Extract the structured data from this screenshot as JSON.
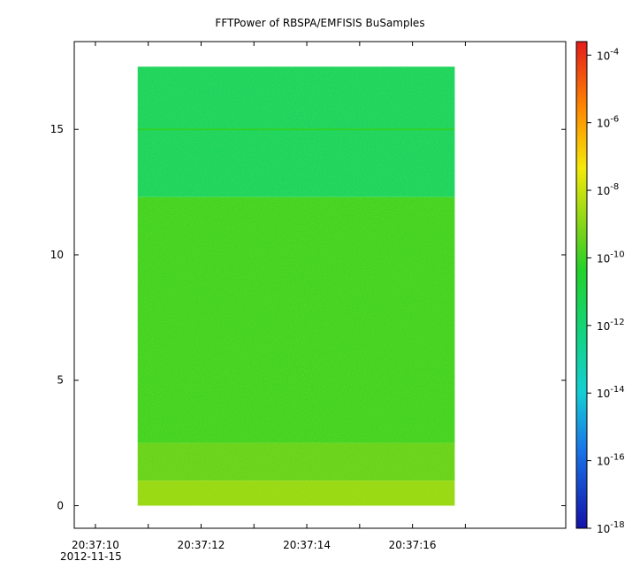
{
  "chart_data": {
    "type": "heatmap",
    "title": "FFTPower of RBSPA/EMFISIS  BuSamples",
    "xlabel": "",
    "ylabel": "",
    "x_axis": {
      "start": "20:37:10",
      "end": "20:37:19",
      "date_label": "2012-11-15",
      "ticks": [
        {
          "value": 10,
          "label": "20:37:10"
        },
        {
          "value": 11,
          "label": ""
        },
        {
          "value": 12,
          "label": "20:37:12"
        },
        {
          "value": 13,
          "label": ""
        },
        {
          "value": 14,
          "label": "20:37:14"
        },
        {
          "value": 15,
          "label": ""
        },
        {
          "value": 16,
          "label": "20:37:16"
        },
        {
          "value": 17,
          "label": ""
        }
      ]
    },
    "y_axis": {
      "range": [
        -0.9,
        18.5
      ],
      "ticks": [
        {
          "value": 0,
          "label": "0"
        },
        {
          "value": 5,
          "label": "5"
        },
        {
          "value": 10,
          "label": "10"
        },
        {
          "value": 15,
          "label": "15"
        }
      ]
    },
    "data_extent": {
      "x": [
        10.8,
        16.8
      ],
      "y": [
        0,
        17.5
      ]
    },
    "bands": [
      {
        "y_from": 12.3,
        "y_to": 17.5,
        "log10_power": -11.6
      },
      {
        "y_from": 2.5,
        "y_to": 12.3,
        "log10_power": -10.0
      },
      {
        "y_from": 1.0,
        "y_to": 2.5,
        "log10_power": -9.5
      },
      {
        "y_from": 0.0,
        "y_to": 1.0,
        "log10_power": -8.8
      }
    ],
    "line_at_y": 15.0,
    "colorbar": {
      "scale": "log",
      "range": [
        -18,
        -3.6
      ],
      "ticks": [
        {
          "value": -4,
          "base": "10",
          "exp": "-4"
        },
        {
          "value": -6,
          "base": "10",
          "exp": "-6"
        },
        {
          "value": -8,
          "base": "10",
          "exp": "-8"
        },
        {
          "value": -10,
          "base": "10",
          "exp": "-10"
        },
        {
          "value": -12,
          "base": "10",
          "exp": "-12"
        },
        {
          "value": -14,
          "base": "10",
          "exp": "-14"
        },
        {
          "value": -16,
          "base": "10",
          "exp": "-16"
        },
        {
          "value": -18,
          "base": "10",
          "exp": "-18"
        }
      ],
      "stops": [
        {
          "offset": 0.0,
          "color": "#e41b1b"
        },
        {
          "offset": 0.14,
          "color": "#ff8a00"
        },
        {
          "offset": 0.26,
          "color": "#f4e90a"
        },
        {
          "offset": 0.4,
          "color": "#6fd21c"
        },
        {
          "offset": 0.47,
          "color": "#22d22a"
        },
        {
          "offset": 0.6,
          "color": "#12d480"
        },
        {
          "offset": 0.72,
          "color": "#14cfd4"
        },
        {
          "offset": 0.84,
          "color": "#1a74e8"
        },
        {
          "offset": 1.0,
          "color": "#1212a8"
        }
      ]
    }
  }
}
